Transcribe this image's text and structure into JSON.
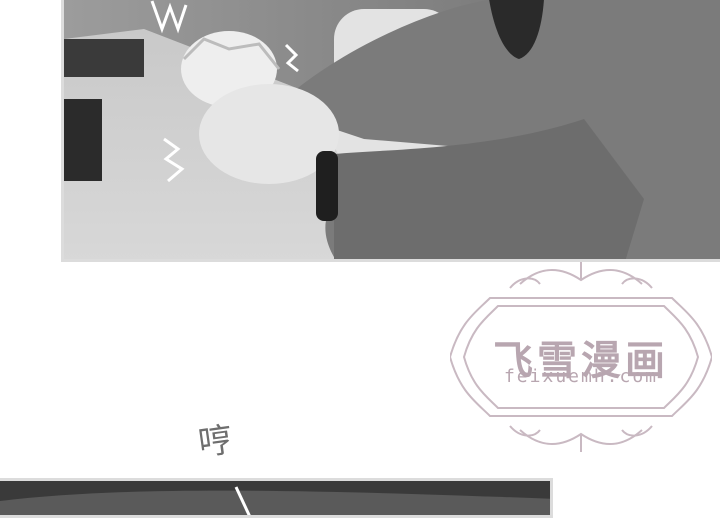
{
  "sfx": {
    "hum": "哼"
  },
  "watermark": {
    "title": "飞雪漫画",
    "url": "feixuemh.com"
  }
}
